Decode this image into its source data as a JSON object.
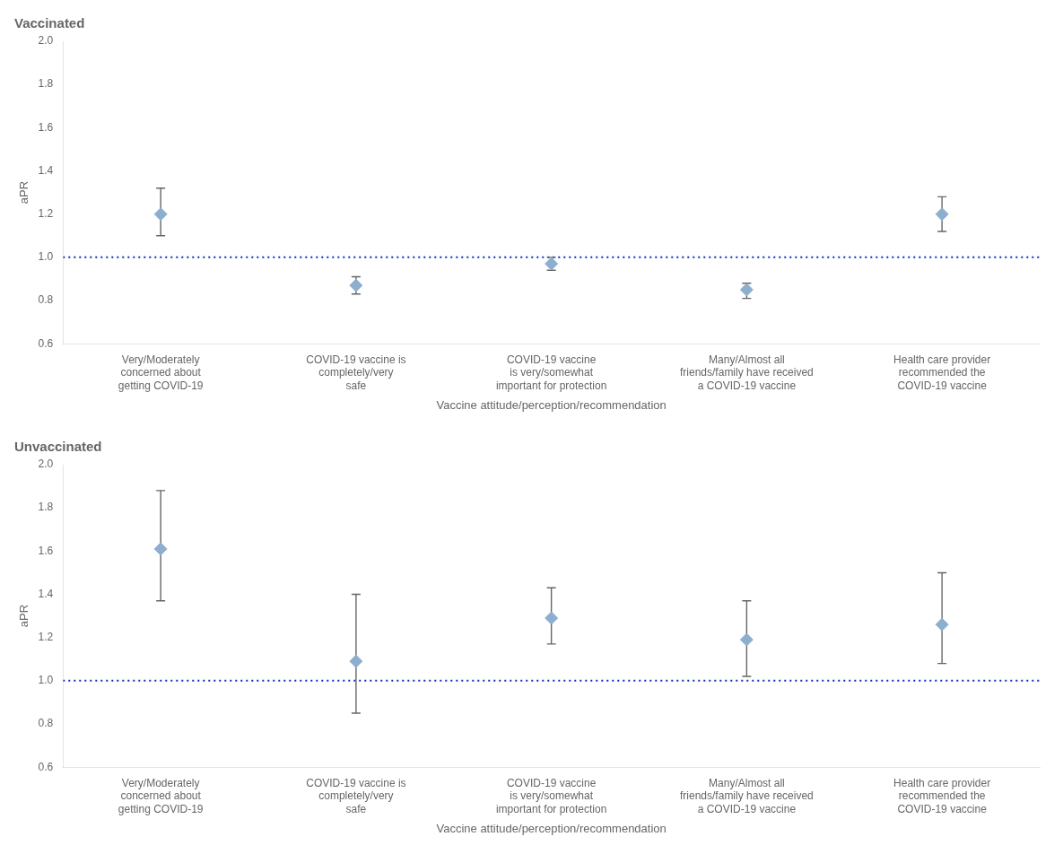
{
  "chart_data": [
    {
      "type": "scatter",
      "title": "Vaccinated",
      "x_label": "Vaccine attitude/perception/recommendation",
      "y_label": "aPR",
      "categories": [
        "Very/Moderately\nconcerned about\ngetting COVID-19",
        "COVID-19 vaccine is\ncompletely/very\nsafe",
        "COVID-19 vaccine\nis very/somewhat\nimportant for protection",
        "Many/Almost all\nfriends/family have received\na COVID-19 vaccine",
        "Health care provider\nrecommended the\nCOVID-19 vaccine"
      ],
      "values": [
        1.2,
        0.87,
        0.97,
        0.85,
        1.2
      ],
      "ci_lower": [
        1.1,
        0.83,
        0.94,
        0.81,
        1.12
      ],
      "ci_upper": [
        1.32,
        0.91,
        1.0,
        0.88,
        1.28
      ],
      "color": "#8eaed0",
      "marker": "diamond",
      "ref_line": {
        "value": 1.0,
        "color": "#0033bb",
        "line_style": "dotted"
      },
      "ylim": [
        0.6,
        2.0
      ],
      "yticks": [
        0.6,
        0.8,
        {
          "value": 1.0,
          "label": "1.0"
        },
        1.2,
        1.4,
        1.6,
        1.8,
        {
          "value": 2.0,
          "label": "2.0"
        }
      ],
      "grid": false
    },
    {
      "type": "scatter",
      "title": "Unvaccinated",
      "x_label": "Vaccine attitude/perception/recommendation",
      "y_label": "aPR",
      "categories": [
        "Very/Moderately\nconcerned about\ngetting COVID-19",
        "COVID-19 vaccine is\ncompletely/very\nsafe",
        "COVID-19 vaccine\nis very/somewhat\nimportant for protection",
        "Many/Almost all\nfriends/family have received\na COVID-19 vaccine",
        "Health care provider\nrecommended the\nCOVID-19 vaccine"
      ],
      "values": [
        1.61,
        1.09,
        1.29,
        1.19,
        1.26
      ],
      "ci_lower": [
        1.37,
        0.85,
        1.17,
        1.02,
        1.08
      ],
      "ci_upper": [
        1.88,
        1.4,
        1.43,
        1.37,
        1.5
      ],
      "color": "#8eaed0",
      "marker": "diamond",
      "ref_line": {
        "value": 1.0,
        "color": "#0033bb",
        "line_style": "dotted"
      },
      "ylim": [
        0.6,
        2.0
      ],
      "yticks": [
        0.6,
        0.8,
        {
          "value": 1.0,
          "label": "1.0"
        },
        1.2,
        1.4,
        1.6,
        1.8,
        {
          "value": 2.0,
          "label": "2.0"
        }
      ],
      "grid": false
    }
  ]
}
